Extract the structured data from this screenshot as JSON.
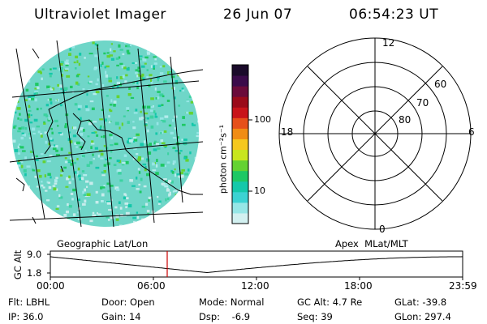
{
  "header": {
    "title": "Ultraviolet Imager",
    "date": "26 Jun 07",
    "time": "06:54:23 UT"
  },
  "colorbar": {
    "unit_label": "photon cm⁻²s⁻¹",
    "ticks": [
      "100",
      "10"
    ],
    "colors": [
      "#1a0a2a",
      "#3a0a4a",
      "#6a0a3a",
      "#9a0a1a",
      "#c8141a",
      "#e6501a",
      "#f08c14",
      "#f5c81e",
      "#c8e61e",
      "#64d232",
      "#1ec864",
      "#14c8aa",
      "#3cd2d2",
      "#96e6e6",
      "#d2f0f0"
    ]
  },
  "polar": {
    "mlt_labels": {
      "top": "12",
      "right": "6",
      "bottom": "0",
      "left": "18"
    },
    "lat_labels": [
      "60",
      "70",
      "80"
    ]
  },
  "timeline": {
    "axis_label": "GC Alt",
    "y_ticks": [
      "9.0",
      "1.8"
    ],
    "left_caption": "Geographic Lat/Lon",
    "right_caption": "Apex  MLat/MLT",
    "x_ticks": [
      "00:00",
      "06:00",
      "12:00",
      "18:00",
      "23:59"
    ],
    "marker_color": "#cc0000"
  },
  "info": {
    "row1": {
      "flt": "Flt: LBHL",
      "door": "Door: Open",
      "mode": "Mode: Normal",
      "gcalt": "GC Alt: 4.7 Re",
      "glat": "GLat: -39.8"
    },
    "row2": {
      "ip": "IP: 36.0",
      "gain": "Gain: 14",
      "dsp": "Dsp:    -6.9",
      "seq": "Seq: 39",
      "glon": "GLon: 297.4"
    }
  }
}
